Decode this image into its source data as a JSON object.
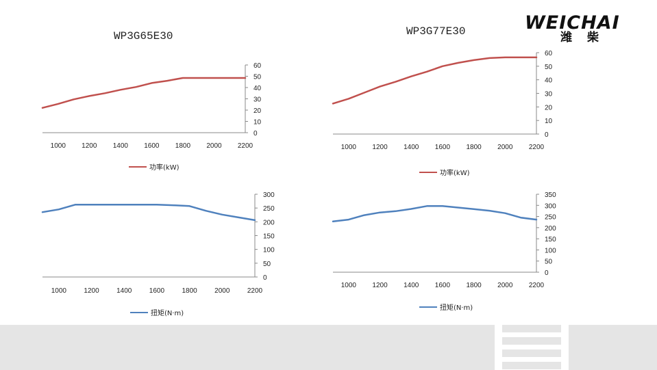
{
  "logo": {
    "text": "WEICHAI",
    "cn": "潍柴"
  },
  "chart_data": [
    {
      "type": "line",
      "title": "WP3G65E30",
      "x": [
        900,
        1000,
        1100,
        1200,
        1300,
        1400,
        1500,
        1600,
        1700,
        1800,
        1900,
        2000,
        2100,
        2200
      ],
      "x_ticks": [
        1000,
        1200,
        1400,
        1600,
        1800,
        2000,
        2200
      ],
      "xlim": [
        900,
        2200
      ],
      "ylim": [
        0,
        60
      ],
      "y_ticks": [
        0,
        10,
        20,
        30,
        40,
        50,
        60
      ],
      "y_axis_side": "right",
      "series": [
        {
          "name": "功率(kW)",
          "values": [
            22,
            25.5,
            29.5,
            32.5,
            35,
            38,
            40.5,
            44,
            46,
            48.5,
            48.5,
            48.5,
            48.5,
            48.5
          ],
          "color": "#c0504d"
        }
      ],
      "legend": "bottom"
    },
    {
      "type": "line",
      "title": "WP3G77E30",
      "x": [
        900,
        1000,
        1100,
        1200,
        1300,
        1400,
        1500,
        1600,
        1700,
        1800,
        1900,
        2000,
        2100,
        2200
      ],
      "x_ticks": [
        1000,
        1200,
        1400,
        1600,
        1800,
        2000,
        2200
      ],
      "xlim": [
        900,
        2200
      ],
      "ylim": [
        0,
        60
      ],
      "y_ticks": [
        0,
        10,
        20,
        30,
        40,
        50,
        60
      ],
      "y_axis_side": "right",
      "series": [
        {
          "name": "功率(kW)",
          "values": [
            22.5,
            26,
            30.5,
            35,
            38.5,
            42.5,
            46,
            50,
            52.5,
            54.5,
            56,
            56.5,
            56.5,
            56.5
          ],
          "color": "#c0504d"
        }
      ],
      "legend": "bottom"
    },
    {
      "type": "line",
      "title": "",
      "x": [
        900,
        1000,
        1100,
        1200,
        1300,
        1400,
        1500,
        1600,
        1700,
        1800,
        1900,
        2000,
        2100,
        2200
      ],
      "x_ticks": [
        1000,
        1200,
        1400,
        1600,
        1800,
        2000,
        2200
      ],
      "xlim": [
        900,
        2200
      ],
      "ylim": [
        0,
        300
      ],
      "y_ticks": [
        0,
        50,
        100,
        150,
        200,
        250,
        300
      ],
      "y_axis_side": "right",
      "series": [
        {
          "name": "扭矩(N·m)",
          "values": [
            235,
            245,
            262,
            262,
            262,
            262,
            262,
            262,
            260,
            257,
            240,
            226,
            216,
            206
          ],
          "color": "#4f81bd"
        }
      ],
      "legend": "bottom"
    },
    {
      "type": "line",
      "title": "",
      "x": [
        900,
        1000,
        1100,
        1200,
        1300,
        1400,
        1500,
        1600,
        1700,
        1800,
        1900,
        2000,
        2100,
        2200
      ],
      "x_ticks": [
        1000,
        1200,
        1400,
        1600,
        1800,
        2000,
        2200
      ],
      "xlim": [
        900,
        2200
      ],
      "ylim": [
        0,
        350
      ],
      "y_ticks": [
        0,
        50,
        100,
        150,
        200,
        250,
        300,
        350
      ],
      "y_axis_side": "right",
      "series": [
        {
          "name": "扭矩(N·m)",
          "values": [
            228,
            236,
            256,
            268,
            274,
            284,
            297,
            297,
            290,
            283,
            276,
            265,
            245,
            236
          ],
          "color": "#4f81bd"
        }
      ],
      "legend": "bottom"
    }
  ]
}
